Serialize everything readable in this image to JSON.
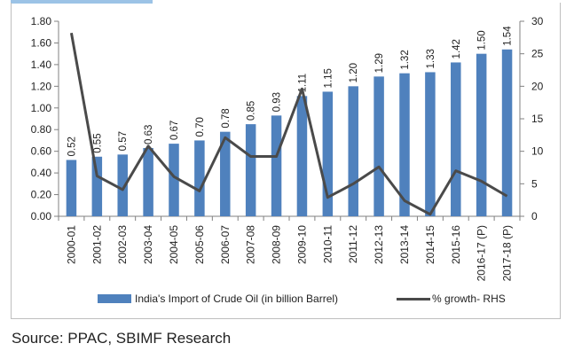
{
  "chart_data": {
    "type": "bar",
    "categories": [
      "2000-01",
      "2001-02",
      "2002-03",
      "2003-04",
      "2004-05",
      "2005-06",
      "2006-07",
      "2007-08",
      "2008-09",
      "2009-10",
      "2010-11",
      "2011-12",
      "2012-13",
      "2013-14",
      "2014-15",
      "2015-16",
      "2016-17 (P)",
      "2017-18 (P)"
    ],
    "series": [
      {
        "name": "India's Import of Crude Oil (in billion Barrel)",
        "type": "bar",
        "axis": "left",
        "color": "#4f81bd",
        "values": [
          0.52,
          0.55,
          0.57,
          0.63,
          0.67,
          0.7,
          0.78,
          0.85,
          0.93,
          1.11,
          1.15,
          1.2,
          1.29,
          1.32,
          1.33,
          1.42,
          1.5,
          1.54
        ],
        "labels": [
          "0.52",
          "0.55",
          "0.57",
          "0.63",
          "0.67",
          "0.70",
          "0.78",
          "0.85",
          "0.93",
          "1.11",
          "1.15",
          "1.20",
          "1.29",
          "1.32",
          "1.33",
          "1.42",
          "1.50",
          "1.54"
        ]
      },
      {
        "name": "% growth- RHS",
        "type": "line",
        "axis": "right",
        "color": "#4a4a4a",
        "values": [
          28.2,
          6.2,
          4.1,
          10.8,
          6.1,
          3.9,
          12.1,
          9.2,
          9.2,
          19.6,
          2.9,
          5.0,
          7.6,
          2.4,
          0.3,
          7.0,
          5.4,
          3.1
        ]
      }
    ],
    "y_left": {
      "ylim": [
        0,
        1.8
      ],
      "ticks": [
        "0.00",
        "0.20",
        "0.40",
        "0.60",
        "0.80",
        "1.00",
        "1.20",
        "1.40",
        "1.60",
        "1.80"
      ]
    },
    "y_right": {
      "ylim": [
        0,
        30
      ],
      "ticks": [
        "0",
        "5",
        "10",
        "15",
        "20",
        "25",
        "30"
      ]
    },
    "title": "",
    "xlabel": "",
    "ylabel": "",
    "grid": false,
    "legend": "bottom"
  },
  "source_text": "Source: PPAC, SBIMF Research"
}
